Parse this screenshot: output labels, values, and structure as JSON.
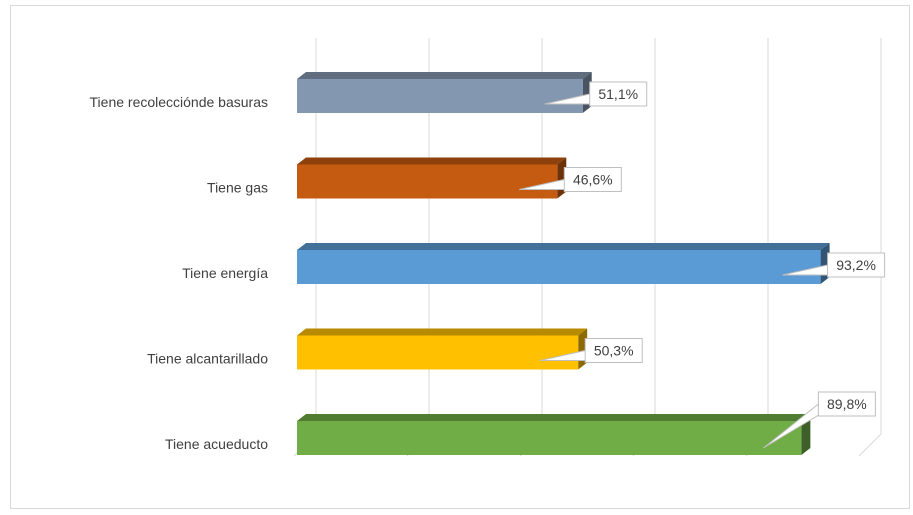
{
  "chart_data": {
    "type": "bar",
    "orientation": "horizontal",
    "style": "3d",
    "title": "",
    "xlabel": "",
    "ylabel": "",
    "xlim": [
      0,
      100
    ],
    "grid": true,
    "legend": "none",
    "categories": [
      "Tiene recolecciónde basuras",
      "Tiene gas",
      "Tiene energía",
      "Tiene alcantarillado",
      "Tiene acueducto"
    ],
    "values": [
      51.1,
      46.6,
      93.2,
      50.3,
      89.8
    ],
    "data_labels": [
      "51,1%",
      "46,6%",
      "93,2%",
      "50,3%",
      "89,8%"
    ],
    "colors": [
      "#8497b0",
      "#c55a11",
      "#5b9bd5",
      "#ffc000",
      "#70ad47"
    ]
  }
}
